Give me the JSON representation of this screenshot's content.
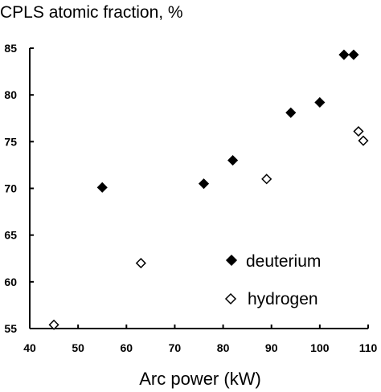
{
  "chart_data": {
    "type": "scatter",
    "title": "CPLS atomic fraction, %",
    "xlabel": "Arc power (kW)",
    "ylabel": "",
    "xlim": [
      40,
      110
    ],
    "ylim": [
      55,
      85
    ],
    "xticks": [
      "40",
      "50",
      "60",
      "70",
      "80",
      "90",
      "100",
      "110"
    ],
    "yticks": [
      "55",
      "60",
      "65",
      "70",
      "75",
      "80",
      "85"
    ],
    "grid": false,
    "legend_position": "bottom-right",
    "series": [
      {
        "name": "deuterium",
        "marker": "filled-diamond",
        "color": "#000000",
        "points": [
          [
            55,
            70.1
          ],
          [
            76,
            70.5
          ],
          [
            82,
            73.0
          ],
          [
            94,
            78.1
          ],
          [
            100,
            79.2
          ],
          [
            105,
            84.3
          ],
          [
            107,
            84.3
          ]
        ]
      },
      {
        "name": "hydrogen",
        "marker": "open-diamond",
        "color": "#000000",
        "points": [
          [
            45,
            55.4
          ],
          [
            63,
            62.0
          ],
          [
            89,
            71.0
          ],
          [
            108,
            76.1
          ],
          [
            109,
            75.1
          ]
        ]
      }
    ]
  }
}
